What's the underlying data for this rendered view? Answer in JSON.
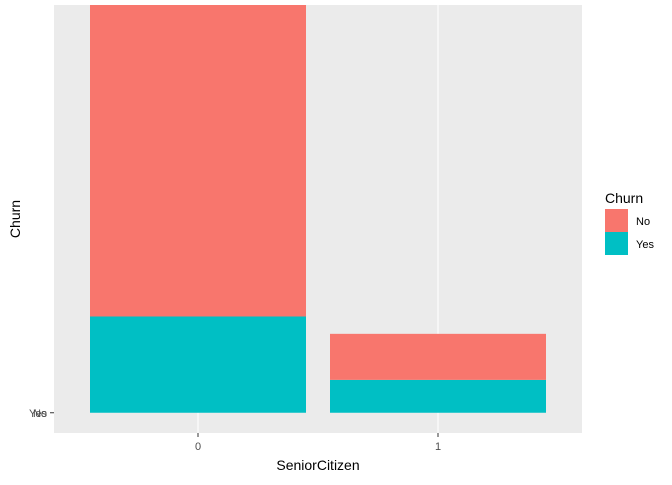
{
  "chart_data": {
    "type": "bar",
    "stacked": true,
    "xlabel": "SeniorCitizen",
    "ylabel": "Churn",
    "categories": [
      "0",
      "1"
    ],
    "y_tick_labels": [
      "No",
      "Yes"
    ],
    "series": [
      {
        "name": "Yes",
        "values": [
          1393,
          476
        ],
        "color": "#00BFC4"
      },
      {
        "name": "No",
        "values": [
          4508,
          666
        ],
        "color": "#F8766D"
      }
    ],
    "ylim": [
      -293,
      5901
    ],
    "grid": true,
    "background_color": "#EBEBEB",
    "gridline_color": "#FFFFFF",
    "legend": {
      "title": "Churn",
      "placement": "right",
      "entries": [
        {
          "label": "No",
          "color": "#F8766D"
        },
        {
          "label": "Yes",
          "color": "#00BFC4"
        }
      ]
    }
  }
}
